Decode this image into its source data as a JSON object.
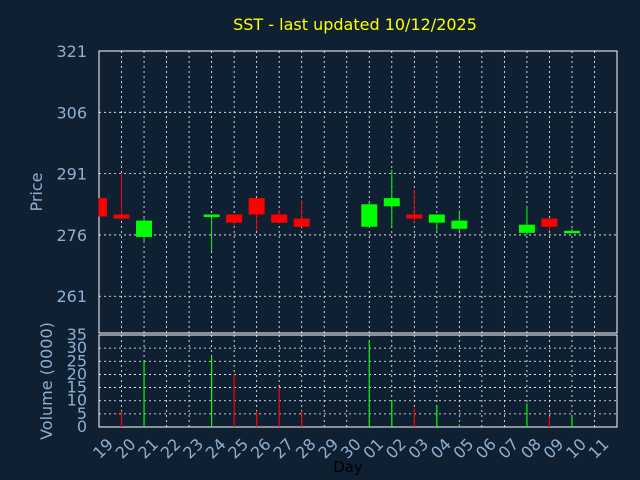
{
  "title": "SST - last updated 10/12/2025",
  "chart_data": {
    "type": "candlestick",
    "title": "SST - last updated 10/12/2025",
    "xlabel": "Day",
    "price_ylabel": "Price",
    "volume_ylabel": "Volume (0000)",
    "x_ticks": [
      "19",
      "20",
      "21",
      "22",
      "23",
      "24",
      "25",
      "26",
      "27",
      "28",
      "29",
      "30",
      "01",
      "02",
      "03",
      "04",
      "05",
      "06",
      "07",
      "08",
      "09",
      "10",
      "11"
    ],
    "price_yticks": [
      261,
      276,
      291,
      306,
      321
    ],
    "price_ylim": [
      252.0,
      321
    ],
    "volume_yticks": [
      0,
      5,
      10,
      15,
      20,
      25,
      30,
      35
    ],
    "volume_ylim": [
      0,
      35
    ],
    "grid": true,
    "colors": {
      "background": "#0f2033",
      "up": "#00ff00",
      "down": "#ff0000",
      "title": "#ffff00",
      "axis_text": "#8fb0d0",
      "frame": "#ffffff"
    },
    "candles": [
      {
        "day": "19",
        "open": 285.0,
        "high": 285.0,
        "low": 280.5,
        "close": 280.5
      },
      {
        "day": "20",
        "open": 281.0,
        "high": 291.0,
        "low": 280.0,
        "close": 280.0
      },
      {
        "day": "21",
        "open": 275.5,
        "high": 280.0,
        "low": 274.0,
        "close": 279.5
      },
      {
        "day": "24",
        "open": 280.5,
        "high": 281.0,
        "low": 272.0,
        "close": 281.0
      },
      {
        "day": "25",
        "open": 281.0,
        "high": 281.0,
        "low": 278.5,
        "close": 279.0
      },
      {
        "day": "26",
        "open": 285.0,
        "high": 285.0,
        "low": 277.0,
        "close": 281.0
      },
      {
        "day": "27",
        "open": 281.0,
        "high": 282.0,
        "low": 279.0,
        "close": 279.0
      },
      {
        "day": "28",
        "open": 280.0,
        "high": 284.5,
        "low": 278.0,
        "close": 278.0
      },
      {
        "day": "01",
        "open": 278.0,
        "high": 284.0,
        "low": 278.0,
        "close": 283.5
      },
      {
        "day": "02",
        "open": 283.0,
        "high": 292.0,
        "low": 278.0,
        "close": 285.0
      },
      {
        "day": "03",
        "open": 281.0,
        "high": 287.0,
        "low": 279.0,
        "close": 280.0
      },
      {
        "day": "04",
        "open": 279.0,
        "high": 281.0,
        "low": 277.0,
        "close": 281.0
      },
      {
        "day": "05",
        "open": 277.5,
        "high": 282.0,
        "low": 277.0,
        "close": 279.5
      },
      {
        "day": "08",
        "open": 276.5,
        "high": 283.0,
        "low": 276.0,
        "close": 278.5
      },
      {
        "day": "09",
        "open": 280.0,
        "high": 280.0,
        "low": 277.0,
        "close": 278.0
      },
      {
        "day": "10",
        "open": 276.5,
        "high": 277.5,
        "low": 276.5,
        "close": 277.0
      }
    ],
    "volume": [
      {
        "day": "20",
        "value": 6,
        "color": "down"
      },
      {
        "day": "21",
        "value": 25,
        "color": "up"
      },
      {
        "day": "24",
        "value": 27,
        "color": "up"
      },
      {
        "day": "25",
        "value": 20,
        "color": "down"
      },
      {
        "day": "26",
        "value": 6,
        "color": "down"
      },
      {
        "day": "27",
        "value": 15,
        "color": "down"
      },
      {
        "day": "28",
        "value": 6,
        "color": "down"
      },
      {
        "day": "01",
        "value": 33,
        "color": "up"
      },
      {
        "day": "02",
        "value": 10,
        "color": "up"
      },
      {
        "day": "03",
        "value": 7,
        "color": "down"
      },
      {
        "day": "04",
        "value": 8,
        "color": "up"
      },
      {
        "day": "05",
        "value": 1,
        "color": "up"
      },
      {
        "day": "08",
        "value": 9,
        "color": "up"
      },
      {
        "day": "09",
        "value": 4,
        "color": "down"
      },
      {
        "day": "10",
        "value": 4,
        "color": "up"
      }
    ]
  }
}
